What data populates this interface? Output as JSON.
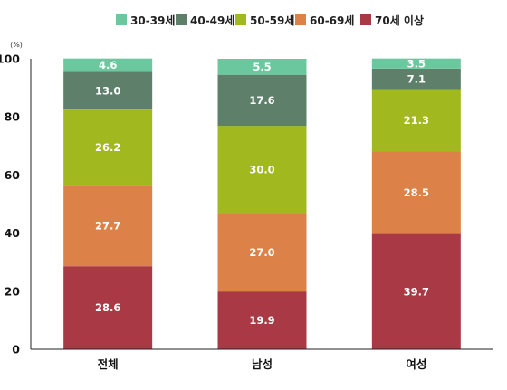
{
  "chart_data": {
    "type": "bar",
    "stacked": true,
    "unit_label": "(%)",
    "ylim": [
      0,
      100
    ],
    "yticks": [
      0,
      20,
      40,
      60,
      80,
      100
    ],
    "categories": [
      "전체",
      "남성",
      "여성"
    ],
    "legend_position": "top",
    "series": [
      {
        "name": "70세 이상",
        "color": "#a93a45",
        "values": [
          28.6,
          19.9,
          39.7
        ],
        "labels": [
          "28.6",
          "19.9",
          "39.7"
        ]
      },
      {
        "name": "60-69세",
        "color": "#dc8147",
        "values": [
          27.7,
          27.0,
          28.5
        ],
        "labels": [
          "27.7",
          "27.0",
          "28.5"
        ]
      },
      {
        "name": "50-59세",
        "color": "#a2b81f",
        "values": [
          26.2,
          30.0,
          21.3
        ],
        "labels": [
          "26.2",
          "30.0",
          "21.3"
        ]
      },
      {
        "name": "40-49세",
        "color": "#5e7f6a",
        "values": [
          13.0,
          17.6,
          7.1
        ],
        "labels": [
          "13.0",
          "17.6",
          "7.1"
        ]
      },
      {
        "name": "30-39세",
        "color": "#6bc79e",
        "values": [
          4.6,
          5.5,
          3.5
        ],
        "labels": [
          "4.6",
          "5.5",
          "3.5"
        ]
      }
    ],
    "legend_order": [
      "30-39세",
      "40-49세",
      "50-59세",
      "60-69세",
      "70세 이상"
    ]
  }
}
